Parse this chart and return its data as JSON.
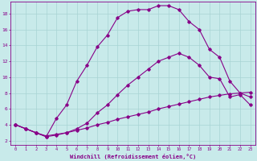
{
  "xlabel": "Windchill (Refroidissement éolien,°C)",
  "ylabel": "",
  "bg_color": "#c8eaea",
  "line_color": "#880088",
  "grid_color": "#a8d4d4",
  "xlim": [
    -0.5,
    23.5
  ],
  "ylim": [
    1.5,
    19.5
  ],
  "xticks": [
    0,
    1,
    2,
    3,
    4,
    5,
    6,
    7,
    8,
    9,
    10,
    11,
    12,
    13,
    14,
    15,
    16,
    17,
    18,
    19,
    20,
    21,
    22,
    23
  ],
  "yticks": [
    2,
    4,
    6,
    8,
    10,
    12,
    14,
    16,
    18
  ],
  "line1_x": [
    0,
    1,
    2,
    3,
    4,
    5,
    6,
    7,
    8,
    9,
    10,
    11,
    12,
    13,
    14,
    15,
    16,
    17,
    18,
    19,
    20,
    21,
    22,
    23
  ],
  "line1_y": [
    4.0,
    3.5,
    3.0,
    2.6,
    2.8,
    3.0,
    3.3,
    3.6,
    4.0,
    4.3,
    4.7,
    5.0,
    5.3,
    5.6,
    6.0,
    6.3,
    6.6,
    6.9,
    7.2,
    7.5,
    7.7,
    7.9,
    8.0,
    8.1
  ],
  "line2_x": [
    0,
    1,
    2,
    3,
    4,
    5,
    6,
    7,
    8,
    9,
    10,
    11,
    12,
    13,
    14,
    15,
    16,
    17,
    18,
    19,
    20,
    21,
    22,
    23
  ],
  "line2_y": [
    4.0,
    3.5,
    3.0,
    2.5,
    2.7,
    3.0,
    3.5,
    4.2,
    5.5,
    6.5,
    7.8,
    9.0,
    10.0,
    11.0,
    12.0,
    12.5,
    13.0,
    12.5,
    11.5,
    10.0,
    9.8,
    7.5,
    7.8,
    6.5
  ],
  "line3_x": [
    0,
    1,
    2,
    3,
    4,
    5,
    6,
    7,
    8,
    9,
    10,
    11,
    12,
    13,
    14,
    15,
    16,
    17,
    18,
    19,
    20,
    21,
    22,
    23
  ],
  "line3_y": [
    4.0,
    3.5,
    3.0,
    2.5,
    4.8,
    6.5,
    9.5,
    11.5,
    13.8,
    15.3,
    17.5,
    18.3,
    18.5,
    18.5,
    19.0,
    19.0,
    18.5,
    17.0,
    16.0,
    13.5,
    12.5,
    9.5,
    8.0,
    7.5
  ],
  "font_family": "monospace"
}
